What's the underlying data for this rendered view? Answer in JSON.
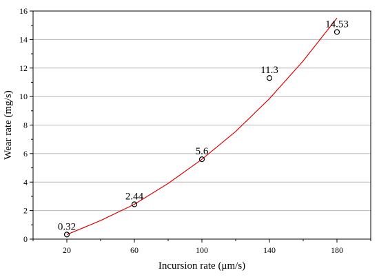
{
  "chart_data": {
    "type": "scatter",
    "xlabel": "Incursion rate (μm/s)",
    "ylabel": "Wear rate (mg/s)",
    "xlim": [
      0,
      200
    ],
    "ylim": [
      0,
      16
    ],
    "xticks": [
      20,
      60,
      100,
      140,
      180
    ],
    "yticks": [
      0,
      2,
      4,
      6,
      8,
      10,
      12,
      14,
      16
    ],
    "x_tick_labels": [
      "20",
      "60",
      "100",
      "140",
      "180"
    ],
    "y_tick_labels": [
      "0",
      "2",
      "4",
      "6",
      "8",
      "10",
      "12",
      "14",
      "16"
    ],
    "grid": "horizontal",
    "series": [
      {
        "marker": "open-circle",
        "color": "#000000",
        "x": [
          20,
          60,
          100,
          140,
          180
        ],
        "y": [
          0.32,
          2.44,
          5.6,
          11.3,
          14.53
        ],
        "labels": [
          "0.32",
          "2.44",
          "5.6",
          "11.3",
          "14.53"
        ]
      }
    ],
    "fit_line": {
      "color": "#e00000",
      "form": "exponential",
      "x": [
        20,
        40,
        60,
        80,
        100,
        120,
        140,
        160,
        180
      ],
      "y": [
        0.32,
        1.3,
        2.44,
        3.9,
        5.6,
        7.55,
        9.85,
        12.5,
        15.5
      ]
    }
  }
}
